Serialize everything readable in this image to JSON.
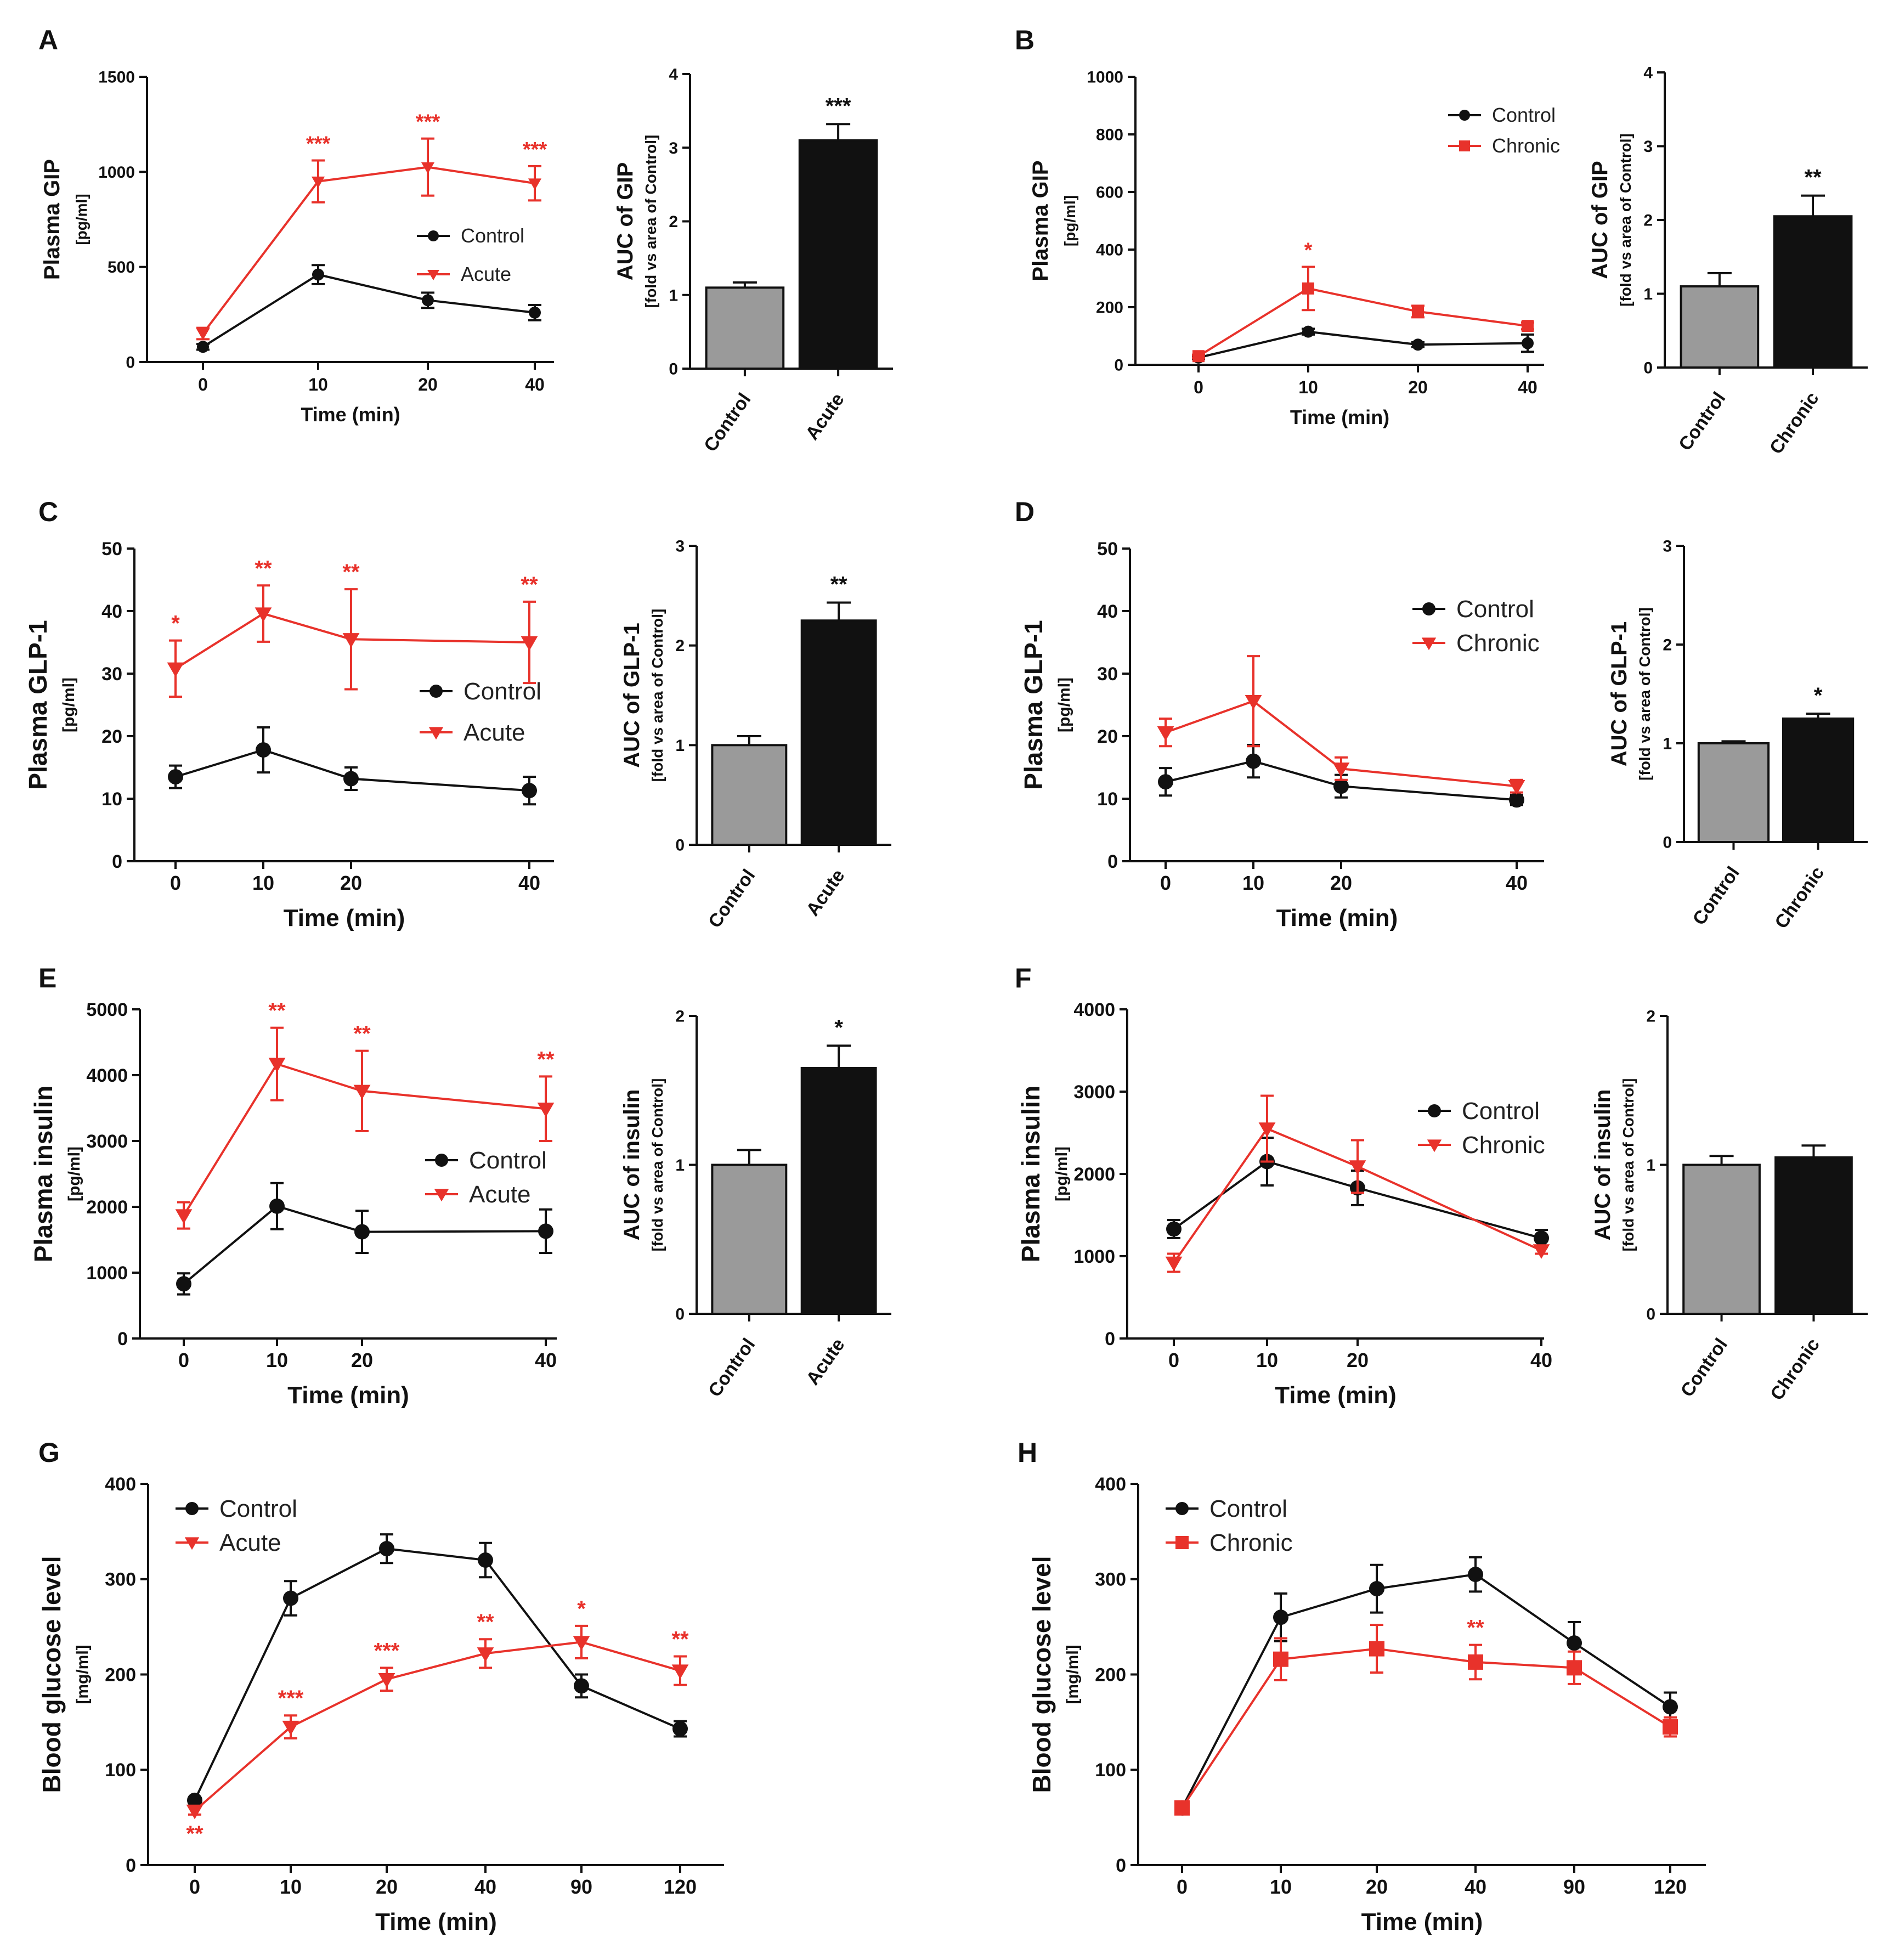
{
  "colors": {
    "control": "#111111",
    "treated": "#e8322b",
    "bar_control": "#9a9a9a",
    "bar_treated": "#111111"
  },
  "chart_data": [
    {
      "id": "A-line",
      "letter": "A",
      "type": "line",
      "ylabel": "Plasma GIP",
      "yunit": "[pg/ml]",
      "xlabel": "Time (min)",
      "x": [
        0,
        10,
        20,
        40
      ],
      "ylim": [
        0,
        1500
      ],
      "yticks": [
        0,
        500,
        1000,
        1500
      ],
      "series": [
        {
          "name": "Control",
          "marker": "circle",
          "values": [
            80,
            460,
            325,
            260
          ],
          "errors": [
            15,
            50,
            40,
            40
          ]
        },
        {
          "name": "Acute",
          "marker": "triangle",
          "values": [
            150,
            950,
            1025,
            940
          ],
          "errors": [
            30,
            110,
            150,
            90
          ]
        }
      ],
      "annotations": [
        {
          "x": 10,
          "text": "***"
        },
        {
          "x": 20,
          "text": "***"
        },
        {
          "x": 40,
          "text": "***"
        }
      ],
      "legend": "center-right"
    },
    {
      "id": "A-bar",
      "type": "bar",
      "ylabel": "AUC of GIP",
      "yunit": "[fold vs area of Control]",
      "categories": [
        "Control",
        "Acute"
      ],
      "values": [
        1.1,
        3.1
      ],
      "errors": [
        0.07,
        0.22
      ],
      "ylim": [
        0,
        4
      ],
      "yticks": [
        0,
        1,
        2,
        3,
        4
      ],
      "annotation": "***"
    },
    {
      "id": "B-line",
      "letter": "B",
      "type": "line",
      "ylabel": "Plasma GIP",
      "yunit": "[pg/ml]",
      "xlabel": "Time (min)",
      "x": [
        0,
        10,
        20,
        40
      ],
      "ylim": [
        0,
        1000
      ],
      "yticks": [
        0,
        200,
        400,
        600,
        800,
        1000
      ],
      "series": [
        {
          "name": "Control",
          "marker": "circle",
          "values": [
            25,
            115,
            70,
            75
          ],
          "errors": [
            5,
            10,
            8,
            30
          ]
        },
        {
          "name": "Chronic",
          "marker": "square",
          "values": [
            30,
            265,
            185,
            135
          ],
          "errors": [
            5,
            75,
            20,
            12
          ]
        }
      ],
      "annotations": [
        {
          "x": 10,
          "text": "*"
        }
      ],
      "legend": "top-right"
    },
    {
      "id": "B-bar",
      "type": "bar",
      "ylabel": "AUC of GIP",
      "yunit": "[fold vs area of Control]",
      "categories": [
        "Control",
        "Chronic"
      ],
      "values": [
        1.1,
        2.05
      ],
      "errors": [
        0.18,
        0.28
      ],
      "ylim": [
        0,
        4
      ],
      "yticks": [
        0,
        1,
        2,
        3,
        4
      ],
      "annotation": "**"
    },
    {
      "id": "C-line",
      "letter": "C",
      "type": "line",
      "ylabel": "Plasma GLP-1",
      "yunit": "[pg/ml]",
      "xlabel": "Time (min)",
      "x": [
        0,
        10,
        20,
        40
      ],
      "ylim": [
        0,
        50
      ],
      "yticks": [
        0,
        10,
        20,
        30,
        40,
        50
      ],
      "series": [
        {
          "name": "Control",
          "marker": "circle",
          "values": [
            13.5,
            17.8,
            13.2,
            11.3
          ],
          "errors": [
            1.8,
            3.6,
            1.8,
            2.2
          ]
        },
        {
          "name": "Acute",
          "marker": "triangle",
          "values": [
            30.8,
            39.6,
            35.5,
            35.0
          ],
          "errors": [
            4.5,
            4.5,
            8.0,
            6.5
          ]
        }
      ],
      "annotations": [
        {
          "x": 0,
          "text": "*"
        },
        {
          "x": 10,
          "text": "**"
        },
        {
          "x": 20,
          "text": "**"
        },
        {
          "x": 40,
          "text": "**"
        }
      ],
      "legend": "center-right"
    },
    {
      "id": "C-bar",
      "type": "bar",
      "ylabel": "AUC of GLP-1",
      "yunit": "[fold vs area of Control]",
      "categories": [
        "Control",
        "Acute"
      ],
      "values": [
        1.0,
        2.25
      ],
      "errors": [
        0.09,
        0.18
      ],
      "ylim": [
        0,
        3
      ],
      "yticks": [
        0,
        1,
        2,
        3
      ],
      "annotation": "**"
    },
    {
      "id": "D-line",
      "letter": "D",
      "type": "line",
      "ylabel": "Plasma GLP-1",
      "yunit": "[pg/ml]",
      "xlabel": "Time (min)",
      "x": [
        0,
        10,
        20,
        40
      ],
      "ylim": [
        0,
        50
      ],
      "yticks": [
        0,
        10,
        20,
        30,
        40,
        50
      ],
      "series": [
        {
          "name": "Control",
          "marker": "circle",
          "values": [
            12.7,
            16.0,
            12.0,
            9.8
          ],
          "errors": [
            2.2,
            2.6,
            1.8,
            0.8
          ]
        },
        {
          "name": "Chronic",
          "marker": "triangle",
          "values": [
            20.6,
            25.6,
            14.8,
            12.0
          ],
          "errors": [
            2.2,
            7.2,
            1.8,
            1.0
          ]
        }
      ],
      "annotations": [],
      "legend": "top-right"
    },
    {
      "id": "D-bar",
      "type": "bar",
      "ylabel": "AUC of GLP-1",
      "yunit": "[fold vs area of Control]",
      "categories": [
        "Control",
        "Chronic"
      ],
      "values": [
        1.0,
        1.25
      ],
      "errors": [
        0.02,
        0.05
      ],
      "ylim": [
        0,
        3
      ],
      "yticks": [
        0,
        1,
        2,
        3
      ],
      "annotation": "*"
    },
    {
      "id": "E-line",
      "letter": "E",
      "type": "line",
      "ylabel": "Plasma insulin",
      "yunit": "[pg/ml]",
      "xlabel": "Time (min)",
      "x": [
        0,
        10,
        20,
        40
      ],
      "ylim": [
        0,
        5000
      ],
      "yticks": [
        0,
        1000,
        2000,
        3000,
        4000,
        5000
      ],
      "series": [
        {
          "name": "Control",
          "marker": "circle",
          "values": [
            830,
            2010,
            1620,
            1630
          ],
          "errors": [
            160,
            350,
            320,
            330
          ]
        },
        {
          "name": "Acute",
          "marker": "triangle",
          "values": [
            1870,
            4170,
            3760,
            3490
          ],
          "errors": [
            200,
            550,
            610,
            490
          ]
        }
      ],
      "annotations": [
        {
          "x": 10,
          "text": "**"
        },
        {
          "x": 20,
          "text": "**"
        },
        {
          "x": 40,
          "text": "**"
        }
      ],
      "legend": "center-right"
    },
    {
      "id": "E-bar",
      "type": "bar",
      "ylabel": "AUC of insulin",
      "yunit": "[fold vs area of Control]",
      "categories": [
        "Control",
        "Acute"
      ],
      "values": [
        1.0,
        1.65
      ],
      "errors": [
        0.1,
        0.15
      ],
      "ylim": [
        0,
        2
      ],
      "yticks": [
        0,
        1,
        2
      ],
      "annotation": "*"
    },
    {
      "id": "F-line",
      "letter": "F",
      "type": "line",
      "ylabel": "Plasma insulin",
      "yunit": "[pg/ml]",
      "xlabel": "Time (min)",
      "x": [
        0,
        10,
        20,
        40
      ],
      "ylim": [
        0,
        4000
      ],
      "yticks": [
        0,
        1000,
        2000,
        3000,
        4000
      ],
      "series": [
        {
          "name": "Control",
          "marker": "circle",
          "values": [
            1330,
            2150,
            1830,
            1220
          ],
          "errors": [
            110,
            290,
            210,
            100
          ]
        },
        {
          "name": "Chronic",
          "marker": "triangle",
          "values": [
            920,
            2550,
            2090,
            1070
          ],
          "errors": [
            110,
            400,
            320,
            40
          ]
        }
      ],
      "annotations": [],
      "legend": "center-right"
    },
    {
      "id": "F-bar",
      "type": "bar",
      "ylabel": "AUC of insulin",
      "yunit": "[fold vs area of Control]",
      "categories": [
        "Control",
        "Chronic"
      ],
      "values": [
        1.0,
        1.05
      ],
      "errors": [
        0.06,
        0.08
      ],
      "ylim": [
        0,
        2
      ],
      "yticks": [
        0,
        1,
        2
      ],
      "annotation": ""
    },
    {
      "id": "G-line",
      "letter": "G",
      "type": "line",
      "ylabel": "Blood glucose level",
      "yunit": "[mg/ml]",
      "xlabel": "Time (min)",
      "x": [
        0,
        10,
        20,
        40,
        90,
        120
      ],
      "ylim": [
        0,
        400
      ],
      "yticks": [
        0,
        100,
        200,
        300,
        400
      ],
      "series": [
        {
          "name": "Control",
          "marker": "circle",
          "values": [
            68,
            280,
            332,
            320,
            188,
            143
          ],
          "errors": [
            3,
            18,
            15,
            18,
            12,
            8
          ]
        },
        {
          "name": "Acute",
          "marker": "triangle",
          "values": [
            57,
            145,
            195,
            222,
            234,
            204
          ],
          "errors": [
            4,
            12,
            12,
            15,
            17,
            15
          ]
        }
      ],
      "annotations": [
        {
          "x": 0,
          "text": "**",
          "below": true
        },
        {
          "x": 10,
          "text": "***"
        },
        {
          "x": 20,
          "text": "***"
        },
        {
          "x": 40,
          "text": "**"
        },
        {
          "x": 90,
          "text": "*"
        },
        {
          "x": 120,
          "text": "**"
        }
      ],
      "legend": "top-left"
    },
    {
      "id": "H-line",
      "letter": "H",
      "type": "line",
      "ylabel": "Blood glucose level",
      "yunit": "[mg/ml]",
      "xlabel": "Time (min)",
      "x": [
        0,
        10,
        20,
        40,
        90,
        120
      ],
      "ylim": [
        0,
        400
      ],
      "yticks": [
        0,
        100,
        200,
        300,
        400
      ],
      "series": [
        {
          "name": "Control",
          "marker": "circle",
          "values": [
            60,
            260,
            290,
            305,
            233,
            166
          ],
          "errors": [
            4,
            25,
            25,
            18,
            22,
            15
          ]
        },
        {
          "name": "Chronic",
          "marker": "square",
          "values": [
            60,
            216,
            227,
            213,
            207,
            145
          ],
          "errors": [
            6,
            22,
            25,
            18,
            17,
            10
          ]
        }
      ],
      "annotations": [
        {
          "x": 40,
          "text": "**"
        }
      ],
      "legend": "top-left"
    }
  ]
}
